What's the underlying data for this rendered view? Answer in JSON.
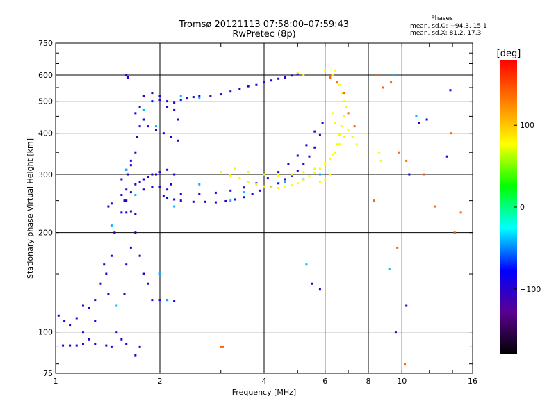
{
  "header": {
    "title": "Tromsø 20121113 07:58:00–07:59:43",
    "subtitle": "RwPretec (8p)"
  },
  "stats": {
    "heading": "Phases",
    "line_o": "mean, sd,O: −94.3, 15.1",
    "line_x": "mean, sd,X:  81.2, 17.3"
  },
  "chart_data": {
    "type": "scatter",
    "title": "Tromsø 20121113 07:58:00–07:59:43",
    "subtitle": "RwPretec (8p)",
    "xlabel": "Frequency [MHz]",
    "ylabel": "Stationary phase Virtual Height [km]",
    "xscale": "log",
    "yscale": "log",
    "xlim": [
      1,
      16
    ],
    "ylim": [
      75,
      750
    ],
    "grid": true,
    "xticks": [
      1,
      2,
      4,
      6,
      8,
      10,
      16
    ],
    "xtick_labels": [
      "1",
      "2",
      "4",
      "6",
      "8",
      "10",
      "16"
    ],
    "yticks": [
      75,
      100,
      200,
      300,
      400,
      500,
      600,
      750
    ],
    "ytick_labels": [
      "75",
      "100",
      "200",
      "300",
      "400",
      "500",
      "600",
      "750"
    ],
    "colorbar": {
      "label": "[deg]",
      "range": [
        -180,
        180
      ],
      "ticks": [
        -100,
        0,
        100
      ],
      "tick_labels": [
        "−100",
        "0",
        "100"
      ],
      "colors": [
        "#000000",
        "#5a0090",
        "#0000ff",
        "#00ffff",
        "#00ff00",
        "#ffff00",
        "#ff8000",
        "#ff0000"
      ]
    },
    "series": [
      {
        "phase": -95,
        "points": [
          [
            1.05,
            91
          ],
          [
            1.1,
            91
          ],
          [
            1.15,
            91
          ],
          [
            1.2,
            92
          ],
          [
            1.3,
            92
          ],
          [
            1.4,
            91
          ],
          [
            1.45,
            90
          ],
          [
            1.02,
            112
          ],
          [
            1.06,
            108
          ],
          [
            1.1,
            105
          ],
          [
            1.15,
            110
          ],
          [
            1.2,
            120
          ],
          [
            1.25,
            118
          ],
          [
            1.3,
            125
          ],
          [
            1.35,
            140
          ],
          [
            1.38,
            160
          ],
          [
            1.4,
            150
          ],
          [
            1.42,
            130
          ],
          [
            1.45,
            170
          ],
          [
            1.48,
            200
          ],
          [
            1.42,
            240
          ],
          [
            1.45,
            245
          ],
          [
            1.55,
            230
          ],
          [
            1.6,
            230
          ],
          [
            1.65,
            232
          ],
          [
            1.7,
            228
          ],
          [
            1.58,
            250
          ],
          [
            1.6,
            270
          ],
          [
            1.62,
            300
          ],
          [
            1.65,
            320
          ],
          [
            1.7,
            350
          ],
          [
            1.72,
            390
          ],
          [
            1.75,
            420
          ],
          [
            1.8,
            440
          ],
          [
            1.7,
            460
          ],
          [
            1.6,
            600
          ],
          [
            1.62,
            590
          ],
          [
            1.58,
            130
          ],
          [
            1.6,
            160
          ],
          [
            1.65,
            180
          ],
          [
            1.7,
            200
          ],
          [
            1.75,
            170
          ],
          [
            1.8,
            150
          ],
          [
            1.85,
            140
          ],
          [
            1.9,
            125
          ],
          [
            2.0,
            125
          ],
          [
            2.1,
            125
          ],
          [
            2.2,
            124
          ],
          [
            1.6,
            250
          ],
          [
            1.65,
            265
          ],
          [
            1.7,
            280
          ],
          [
            1.75,
            285
          ],
          [
            1.8,
            290
          ],
          [
            1.85,
            295
          ],
          [
            1.9,
            300
          ],
          [
            1.95,
            300
          ],
          [
            2.0,
            305
          ],
          [
            2.1,
            310
          ],
          [
            1.8,
            270
          ],
          [
            1.9,
            275
          ],
          [
            2.0,
            275
          ],
          [
            2.05,
            258
          ],
          [
            2.1,
            255
          ],
          [
            2.2,
            252
          ],
          [
            2.3,
            250
          ],
          [
            2.5,
            248
          ],
          [
            2.7,
            248
          ],
          [
            2.9,
            247
          ],
          [
            3.1,
            249
          ],
          [
            3.3,
            252
          ],
          [
            3.5,
            256
          ],
          [
            3.7,
            262
          ],
          [
            3.9,
            268
          ],
          [
            4.2,
            275
          ],
          [
            4.4,
            282
          ],
          [
            4.6,
            290
          ],
          [
            4.8,
            298
          ],
          [
            5.0,
            308
          ],
          [
            5.2,
            322
          ],
          [
            5.4,
            340
          ],
          [
            5.6,
            362
          ],
          [
            5.8,
            395
          ],
          [
            5.9,
            430
          ],
          [
            2.3,
            262
          ],
          [
            2.6,
            262
          ],
          [
            2.9,
            264
          ],
          [
            3.2,
            268
          ],
          [
            3.5,
            274
          ],
          [
            3.8,
            282
          ],
          [
            4.1,
            292
          ],
          [
            4.4,
            305
          ],
          [
            4.7,
            322
          ],
          [
            5.0,
            342
          ],
          [
            5.3,
            368
          ],
          [
            5.6,
            405
          ],
          [
            1.9,
            500
          ],
          [
            2.0,
            505
          ],
          [
            2.1,
            500
          ],
          [
            2.2,
            495
          ],
          [
            2.3,
            505
          ],
          [
            2.4,
            510
          ],
          [
            2.5,
            515
          ],
          [
            2.6,
            518
          ],
          [
            2.8,
            520
          ],
          [
            3.0,
            525
          ],
          [
            3.2,
            535
          ],
          [
            3.4,
            545
          ],
          [
            3.6,
            555
          ],
          [
            3.8,
            560
          ],
          [
            4.0,
            570
          ],
          [
            4.2,
            578
          ],
          [
            4.4,
            585
          ],
          [
            4.6,
            590
          ],
          [
            4.8,
            598
          ],
          [
            5.0,
            605
          ],
          [
            1.8,
            520
          ],
          [
            1.9,
            530
          ],
          [
            2.0,
            520
          ],
          [
            2.1,
            480
          ],
          [
            2.2,
            470
          ],
          [
            2.25,
            380
          ],
          [
            2.15,
            390
          ],
          [
            2.05,
            400
          ],
          [
            1.95,
            410
          ],
          [
            1.85,
            420
          ],
          [
            1.75,
            480
          ],
          [
            2.25,
            440
          ],
          [
            2.2,
            300
          ],
          [
            2.15,
            280
          ],
          [
            2.1,
            270
          ],
          [
            1.55,
            260
          ],
          [
            1.55,
            290
          ],
          [
            1.6,
            310
          ],
          [
            1.65,
            330
          ],
          [
            5.5,
            140
          ],
          [
            5.8,
            135
          ],
          [
            9.6,
            100
          ],
          [
            10.3,
            120
          ],
          [
            11.2,
            430
          ],
          [
            11.8,
            440
          ],
          [
            13.5,
            340
          ],
          [
            13.8,
            540
          ],
          [
            10.5,
            300
          ],
          [
            1.2,
            100
          ],
          [
            1.3,
            108
          ],
          [
            1.25,
            95
          ],
          [
            1.5,
            100
          ],
          [
            1.55,
            95
          ],
          [
            1.6,
            92
          ],
          [
            1.7,
            85
          ],
          [
            1.75,
            90
          ]
        ]
      },
      {
        "phase": -40,
        "points": [
          [
            1.6,
            310
          ],
          [
            1.7,
            260
          ],
          [
            1.8,
            470
          ],
          [
            2.0,
            150
          ],
          [
            2.1,
            125
          ],
          [
            2.3,
            520
          ],
          [
            2.6,
            510
          ],
          [
            3.2,
            250
          ],
          [
            4.0,
            300
          ],
          [
            4.6,
            285
          ],
          [
            5.2,
            290
          ],
          [
            5.8,
            300
          ],
          [
            1.5,
            120
          ],
          [
            1.45,
            210
          ],
          [
            2.6,
            280
          ],
          [
            3.5,
            265
          ],
          [
            9.5,
            600
          ],
          [
            11.0,
            450
          ],
          [
            5.3,
            160
          ],
          [
            9.2,
            155
          ],
          [
            1.95,
            420
          ],
          [
            2.2,
            240
          ]
        ]
      },
      {
        "phase": 80,
        "points": [
          [
            3.0,
            305
          ],
          [
            3.2,
            298
          ],
          [
            3.4,
            292
          ],
          [
            3.6,
            285
          ],
          [
            3.8,
            280
          ],
          [
            4.0,
            276
          ],
          [
            4.2,
            274
          ],
          [
            4.4,
            273
          ],
          [
            4.6,
            275
          ],
          [
            4.8,
            278
          ],
          [
            5.0,
            282
          ],
          [
            5.2,
            288
          ],
          [
            5.4,
            296
          ],
          [
            5.6,
            304
          ],
          [
            5.8,
            312
          ],
          [
            6.0,
            322
          ],
          [
            6.2,
            335
          ],
          [
            6.4,
            350
          ],
          [
            6.5,
            370
          ],
          [
            6.6,
            395
          ],
          [
            6.7,
            420
          ],
          [
            6.8,
            450
          ],
          [
            6.9,
            480
          ],
          [
            6.8,
            500
          ],
          [
            6.7,
            530
          ],
          [
            6.6,
            560
          ],
          [
            3.3,
            312
          ],
          [
            3.6,
            305
          ],
          [
            4.0,
            300
          ],
          [
            4.4,
            298
          ],
          [
            4.8,
            300
          ],
          [
            5.2,
            305
          ],
          [
            5.6,
            312
          ],
          [
            6.0,
            325
          ],
          [
            6.3,
            345
          ],
          [
            6.6,
            370
          ],
          [
            6.8,
            390
          ],
          [
            7.0,
            410
          ],
          [
            7.2,
            390
          ],
          [
            7.4,
            370
          ],
          [
            6.2,
            300
          ],
          [
            6.0,
            290
          ],
          [
            5.8,
            285
          ],
          [
            5.0,
            610
          ],
          [
            5.2,
            600
          ],
          [
            6.4,
            430
          ],
          [
            6.3,
            460
          ],
          [
            8.6,
            350
          ],
          [
            8.7,
            330
          ],
          [
            6.3,
            600
          ],
          [
            6.4,
            620
          ],
          [
            6.0,
            620
          ]
        ]
      },
      {
        "phase": 140,
        "points": [
          [
            6.2,
            590
          ],
          [
            6.5,
            570
          ],
          [
            6.8,
            530
          ],
          [
            7.0,
            460
          ],
          [
            7.3,
            420
          ],
          [
            8.5,
            600
          ],
          [
            8.8,
            550
          ],
          [
            9.3,
            570
          ],
          [
            3.0,
            90
          ],
          [
            3.05,
            90
          ],
          [
            8.3,
            250
          ],
          [
            10.2,
            80
          ],
          [
            9.7,
            180
          ],
          [
            12.5,
            240
          ],
          [
            14.8,
            230
          ],
          [
            14.2,
            200
          ],
          [
            10.3,
            330
          ],
          [
            11.6,
            300
          ],
          [
            9.8,
            350
          ],
          [
            13.9,
            400
          ]
        ]
      }
    ]
  }
}
